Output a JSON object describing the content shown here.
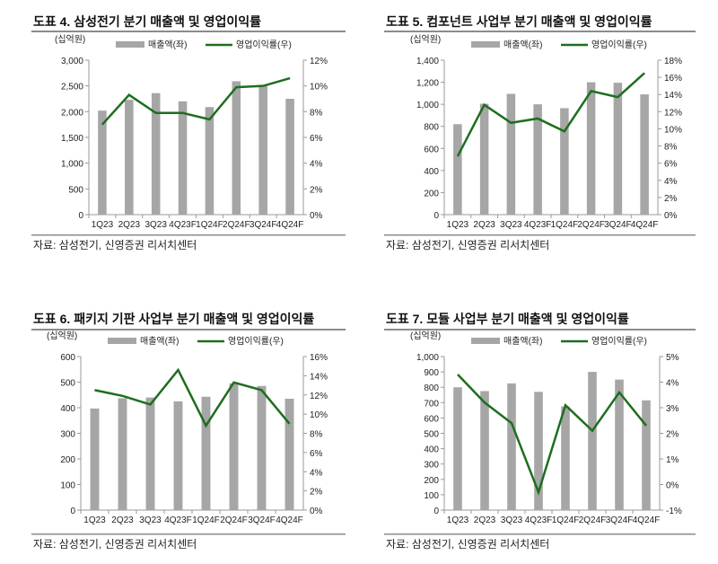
{
  "colors": {
    "bar": "#a6a6a6",
    "line": "#1e6e1e",
    "rule": "#8c8c8c"
  },
  "chart_data": [
    {
      "type": "bar+line",
      "title": "도표 4. 삼성전기 분기 매출액 및 영업이익률",
      "unit": "(십억원)",
      "legend": [
        "매출액(좌)",
        "영업이익률(우)"
      ],
      "source": "자료: 삼성전기, 신영증권 리서치센터",
      "categories": [
        "1Q23",
        "2Q23",
        "3Q23",
        "4Q23F",
        "1Q24F",
        "2Q24F",
        "3Q24F",
        "4Q24F"
      ],
      "left_ticks": [
        "0",
        "500",
        "1,000",
        "1,500",
        "2,000",
        "2,500",
        "3,000"
      ],
      "right_ticks": [
        "0%",
        "2%",
        "4%",
        "6%",
        "8%",
        "10%",
        "12%"
      ],
      "ylim": [
        0,
        3000
      ],
      "y2lim": [
        0,
        12
      ],
      "series": [
        {
          "name": "매출액(좌)",
          "type": "bar",
          "values": [
            2020,
            2230,
            2360,
            2200,
            2090,
            2590,
            2520,
            2250
          ]
        },
        {
          "name": "영업이익률(우)",
          "type": "line",
          "values": [
            7.0,
            9.3,
            7.9,
            7.9,
            7.4,
            9.9,
            10.0,
            10.6
          ]
        }
      ]
    },
    {
      "type": "bar+line",
      "title": "도표 5. 컴포넌트 사업부 분기 매출액 및 영업이익률",
      "unit": "(십억원)",
      "legend": [
        "매출액(좌)",
        "영업이익률(우)"
      ],
      "source": "자료: 삼성전기, 신영증권 리서치센터",
      "categories": [
        "1Q23",
        "2Q23",
        "3Q23",
        "4Q23F",
        "1Q24F",
        "2Q24F",
        "3Q24F",
        "4Q24F"
      ],
      "left_ticks": [
        "0",
        "200",
        "400",
        "600",
        "800",
        "1,000",
        "1,200",
        "1,400"
      ],
      "right_ticks": [
        "0%",
        "2%",
        "4%",
        "6%",
        "8%",
        "10%",
        "12%",
        "14%",
        "16%",
        "18%"
      ],
      "ylim": [
        0,
        1400
      ],
      "y2lim": [
        0,
        18
      ],
      "series": [
        {
          "name": "매출액(좌)",
          "type": "bar",
          "values": [
            820,
            1005,
            1095,
            1000,
            965,
            1200,
            1195,
            1090
          ]
        },
        {
          "name": "영업이익률(우)",
          "type": "line",
          "values": [
            6.8,
            12.8,
            10.7,
            11.2,
            9.7,
            14.4,
            13.7,
            16.5
          ]
        }
      ]
    },
    {
      "type": "bar+line",
      "title": "도표 6. 패키지 기판 사업부 분기 매출액 및 영업이익률",
      "unit": "(십억원)",
      "legend": [
        "매출액(좌)",
        "영업이익률(우)"
      ],
      "source": "자료: 삼성전기, 신영증권 리서치센터",
      "categories": [
        "1Q23",
        "2Q23",
        "3Q23",
        "4Q23F",
        "1Q24F",
        "2Q24F",
        "3Q24F",
        "4Q24F"
      ],
      "left_ticks": [
        "0",
        "100",
        "200",
        "300",
        "400",
        "500",
        "600"
      ],
      "right_ticks": [
        "0%",
        "2%",
        "4%",
        "6%",
        "8%",
        "10%",
        "12%",
        "14%",
        "16%"
      ],
      "ylim": [
        0,
        600
      ],
      "y2lim": [
        0,
        16
      ],
      "series": [
        {
          "name": "매출액(좌)",
          "type": "bar",
          "values": [
            397,
            437,
            440,
            425,
            443,
            495,
            485,
            435
          ]
        },
        {
          "name": "영업이익률(우)",
          "type": "line",
          "values": [
            12.5,
            11.9,
            11.0,
            14.6,
            8.8,
            13.3,
            12.5,
            9.0
          ]
        }
      ]
    },
    {
      "type": "bar+line",
      "title": "도표 7. 모듈 사업부 분기 매출액 및 영업이익률",
      "unit": "(십억원)",
      "legend": [
        "매출액(좌)",
        "영업이익률(우)"
      ],
      "source": "자료: 삼성전기, 신영증권 리서치센터",
      "categories": [
        "1Q23",
        "2Q23",
        "3Q23",
        "4Q23F",
        "1Q24F",
        "2Q24F",
        "3Q24F",
        "4Q24F"
      ],
      "left_ticks": [
        "0",
        "100",
        "200",
        "300",
        "400",
        "500",
        "600",
        "700",
        "800",
        "900",
        "1,000"
      ],
      "right_ticks": [
        "-1%",
        "0%",
        "1%",
        "2%",
        "3%",
        "4%",
        "5%"
      ],
      "ylim": [
        0,
        1000
      ],
      "y2lim": [
        -1,
        5
      ],
      "series": [
        {
          "name": "매출액(좌)",
          "type": "bar",
          "values": [
            800,
            775,
            825,
            770,
            675,
            900,
            850,
            715
          ]
        },
        {
          "name": "영업이익률(우)",
          "type": "line",
          "values": [
            4.3,
            3.2,
            2.4,
            -0.3,
            3.1,
            2.1,
            3.6,
            2.3
          ]
        }
      ]
    }
  ]
}
